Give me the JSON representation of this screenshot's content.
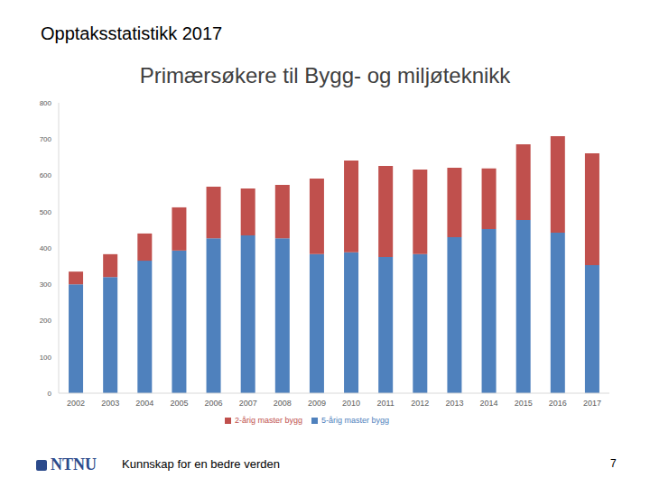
{
  "header": {
    "title": "Opptaksstatistikk 2017"
  },
  "chart_data": {
    "type": "bar",
    "title": "Primærsøkere til Bygg- og miljøteknikk",
    "categories": [
      "2002",
      "2003",
      "2004",
      "2005",
      "2006",
      "2007",
      "2008",
      "2009",
      "2010",
      "2011",
      "2012",
      "2013",
      "2014",
      "2015",
      "2016",
      "2017"
    ],
    "series": [
      {
        "name": "5-årig master bygg",
        "color": "#4f81bd",
        "values": [
          300,
          320,
          365,
          393,
          427,
          435,
          427,
          383,
          388,
          375,
          383,
          430,
          452,
          477,
          442,
          353
        ]
      },
      {
        "name": "2-årig master bygg",
        "color": "#c0504d",
        "values": [
          35,
          63,
          75,
          119,
          142,
          129,
          147,
          208,
          253,
          251,
          233,
          191,
          167,
          209,
          266,
          308
        ]
      }
    ],
    "ylim": [
      0,
      800
    ],
    "yticks": [
      0,
      100,
      200,
      300,
      400,
      500,
      600,
      700,
      800
    ],
    "stacked": true,
    "grid": false,
    "legend": "bottom"
  },
  "footer": {
    "logo": "NTNU",
    "slogan": "Kunnskap for en bedre verden",
    "page": 7
  }
}
